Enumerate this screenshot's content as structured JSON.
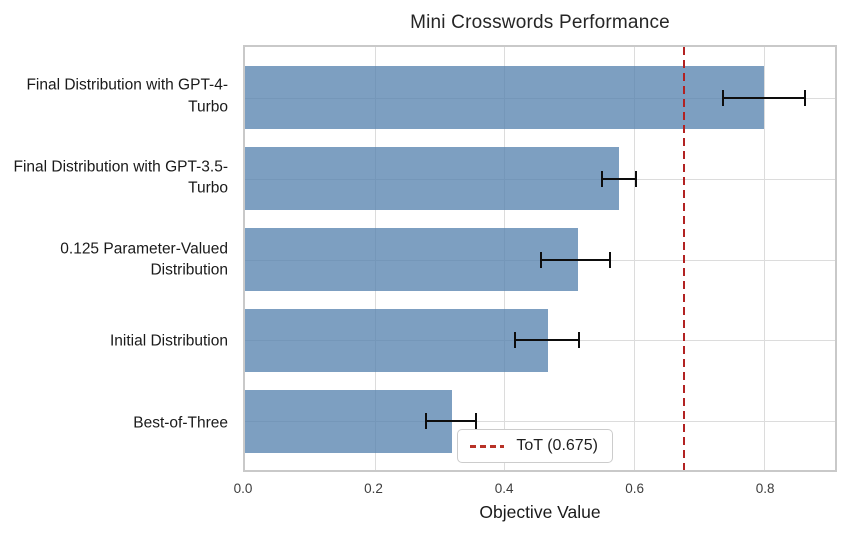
{
  "chart_data": {
    "type": "bar",
    "orientation": "horizontal",
    "title": "Mini Crosswords Performance",
    "xlabel": "Objective Value",
    "ylabel": "",
    "categories": [
      "Final Distribution with GPT-4-Turbo",
      "Final Distribution with GPT-3.5-Turbo",
      "0.125 Parameter-Valued Distribution",
      "Initial Distribution",
      "Best-of-Three"
    ],
    "values": [
      0.8,
      0.577,
      0.513,
      0.467,
      0.32
    ],
    "error_intervals": [
      [
        0.735,
        0.865
      ],
      [
        0.549,
        0.605
      ],
      [
        0.455,
        0.565
      ],
      [
        0.415,
        0.517
      ],
      [
        0.277,
        0.358
      ]
    ],
    "xlim": [
      0,
      0.91
    ],
    "xticks": [
      0.0,
      0.2,
      0.4,
      0.6,
      0.8
    ],
    "xtick_labels": [
      "0.0",
      "0.2",
      "0.4",
      "0.6",
      "0.8"
    ],
    "grid": true,
    "bar_color": "#82a3c3",
    "bar_color_rgba": "rgba(88,132,175,0.78)",
    "errorbar_color": "#0d0d0d",
    "reference_line": {
      "value": 0.675,
      "label": "ToT (0.675)",
      "style": "dashed",
      "color": "#b22222"
    },
    "legend_position": "lower center"
  }
}
